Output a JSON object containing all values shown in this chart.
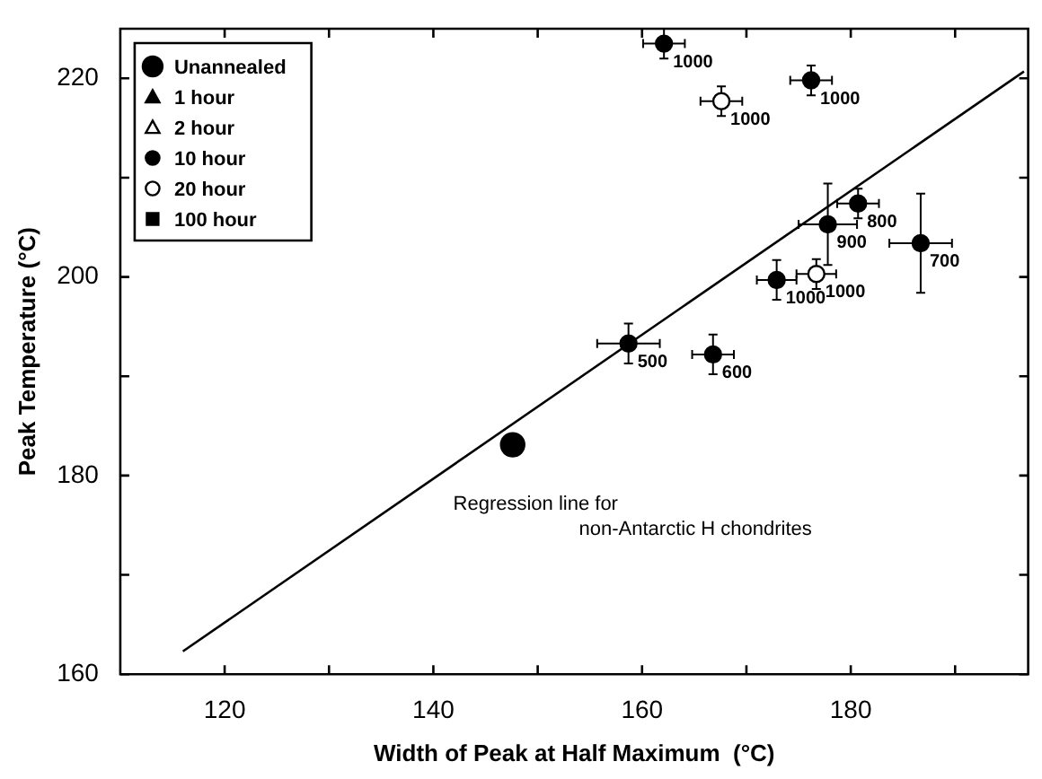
{
  "chart_data": {
    "type": "scatter",
    "xlabel": "Width of Peak at Half Maximum  (°C)",
    "ylabel": "Peak Temperature (°C)",
    "xlim": [
      110,
      197
    ],
    "ylim": [
      160,
      225
    ],
    "xticks": [
      120,
      {
        "value": 130,
        "label": null
      },
      140,
      {
        "value": 150,
        "label": null
      },
      160,
      {
        "value": 170,
        "label": null
      },
      180,
      {
        "value": 190,
        "label": null
      }
    ],
    "yticks": [
      160,
      {
        "value": 170,
        "label": null
      },
      180,
      {
        "value": 190,
        "label": null
      },
      200,
      {
        "value": 210,
        "label": null
      },
      220
    ],
    "grid": false,
    "legend": "top left",
    "series": [
      {
        "name": "Unannealed",
        "marker": "circle",
        "color": "#000000",
        "x": [
          147.6
        ],
        "values": [
          183.1
        ]
      },
      {
        "name": "1 hour",
        "marker": "triangle",
        "color": "#000000"
      },
      {
        "name": "2 hour",
        "marker": "triangle",
        "color": "#ffffff"
      },
      {
        "name": "10 hour",
        "marker": "circle",
        "color": "#000000",
        "x": [
          162.1,
          176.2,
          180.7,
          177.8,
          186.7,
          172.9,
          158.7,
          166.8
        ],
        "values": [
          223.5,
          219.8,
          207.4,
          205.3,
          203.4,
          199.7,
          193.3,
          192.2
        ],
        "xerrors": [
          2,
          2,
          2,
          2.8,
          3,
          1.9,
          3,
          2
        ],
        "errors": [
          1.5,
          1.5,
          1.5,
          4.1,
          5,
          2,
          2,
          2
        ]
      },
      {
        "name": "20 hour",
        "marker": "circle",
        "color": "#ffffff",
        "x": [
          167.6,
          176.7
        ],
        "values": [
          217.7,
          200.3
        ],
        "xerrors": [
          2,
          1.9
        ],
        "errors": [
          1.5,
          1.5
        ]
      },
      {
        "name": "100 hour",
        "marker": "square",
        "color": "#000000"
      },
      {
        "name": "Regression line for non-Antarctic H chondrites",
        "type": "line",
        "marker": "none",
        "line_style": "solid",
        "color": "#000000",
        "x": [
          116,
          196.6
        ],
        "values": [
          162.3,
          220.7
        ]
      }
    ],
    "annotations": [
      {
        "text": "1000",
        "x": 162.1,
        "y": 223.5
      },
      {
        "text": "1000",
        "x": 167.6,
        "y": 217.7
      },
      {
        "text": "1000",
        "x": 176.2,
        "y": 219.8
      },
      {
        "text": "800",
        "x": 180.7,
        "y": 207.4
      },
      {
        "text": "900",
        "x": 177.8,
        "y": 205.3
      },
      {
        "text": "700",
        "x": 186.7,
        "y": 203.4
      },
      {
        "text": "1000",
        "x": 176.7,
        "y": 200.3
      },
      {
        "text": "1000",
        "x": 172.9,
        "y": 199.7
      },
      {
        "text": "500",
        "x": 158.7,
        "y": 193.3
      },
      {
        "text": "600",
        "x": 166.8,
        "y": 192.2
      }
    ]
  }
}
